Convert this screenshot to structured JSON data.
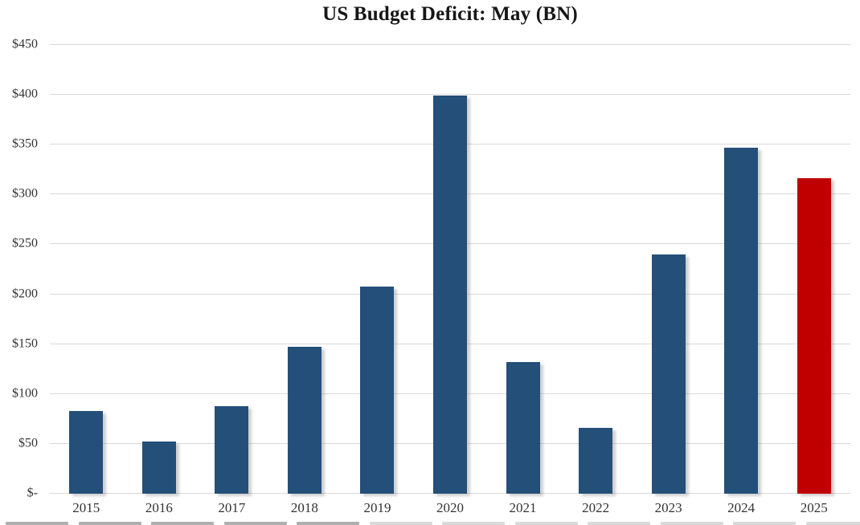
{
  "chart_data": {
    "type": "bar",
    "title": "US Budget Deficit: May (BN)",
    "categories": [
      "2015",
      "2016",
      "2017",
      "2018",
      "2019",
      "2020",
      "2021",
      "2022",
      "2023",
      "2024",
      "2025"
    ],
    "values": [
      83,
      52,
      88,
      147,
      208,
      399,
      132,
      66,
      240,
      347,
      316
    ],
    "highlight_index": 10,
    "xlabel": "",
    "ylabel": "",
    "ylim": [
      0,
      450
    ],
    "ytick_step": 50,
    "ytick_labels": [
      "$-",
      "$50",
      "$100",
      "$150",
      "$200",
      "$250",
      "$300",
      "$350",
      "$400",
      "$450"
    ],
    "grid": true,
    "legend": false,
    "colors": {
      "bar": "#244F79",
      "highlight": "#C00000",
      "gridline": "#D9D9D9",
      "title_text": "#161616",
      "axis_text": "#333333"
    }
  }
}
